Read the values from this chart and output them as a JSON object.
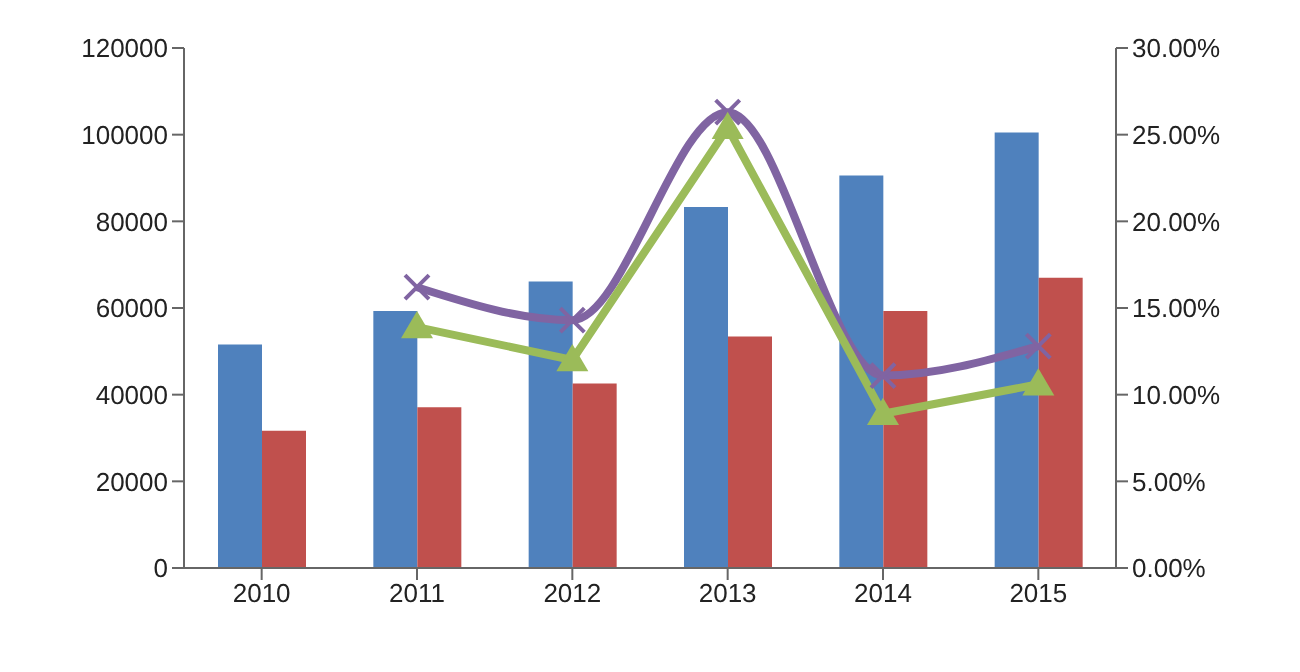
{
  "chart_data": {
    "type": "bar",
    "categories": [
      "2010",
      "2011",
      "2012",
      "2013",
      "2014",
      "2015"
    ],
    "series": [
      {
        "color": "#4f81bd",
        "values": [
          51600,
          59300,
          66100,
          83300,
          90600,
          100500
        ]
      },
      {
        "color": "#c0504d",
        "values": [
          31700,
          37100,
          42600,
          53400,
          59300,
          67000
        ]
      },
      {
        "type": "line",
        "axis": "y2",
        "color": "#8064a2",
        "marker": "cross",
        "values": [
          null,
          16.2,
          14.3,
          26.3,
          11.1,
          12.8
        ]
      },
      {
        "type": "line",
        "axis": "y2",
        "color": "#9bbb59",
        "marker": "triangle",
        "values": [
          null,
          13.9,
          12.0,
          25.4,
          8.9,
          10.6
        ]
      }
    ],
    "ylim": [
      0,
      120000
    ],
    "yticks": [
      0,
      20000,
      40000,
      60000,
      80000,
      100000,
      120000
    ],
    "y2lim": [
      0,
      30
    ],
    "y2ticks": [
      {
        "value": 0,
        "label": "0.00%"
      },
      {
        "value": 5,
        "label": "5.00%"
      },
      {
        "value": 10,
        "label": "10.00%"
      },
      {
        "value": 15,
        "label": "15.00%"
      },
      {
        "value": 20,
        "label": "20.00%"
      },
      {
        "value": 25,
        "label": "25.00%"
      },
      {
        "value": 30,
        "label": "30.00%"
      }
    ],
    "grid": false,
    "legend": false
  }
}
